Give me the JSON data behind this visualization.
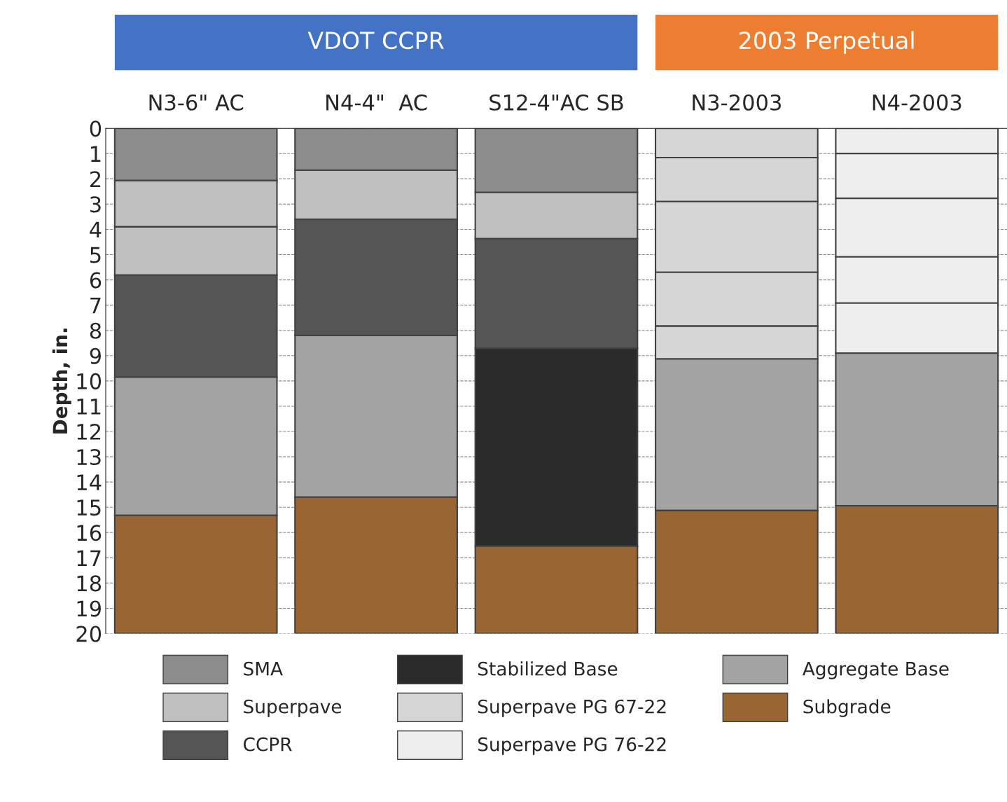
{
  "chart_data": {
    "type": "bar",
    "stacked": true,
    "ylabel": "Depth, in.",
    "annotations": [
      "VDOT CCPR",
      "2003 Perpetual"
    ],
    "categories": [
      "N3-6\" AC",
      "N4-4\"  AC",
      "S12-4\"AC SB",
      "N3-2003",
      "N4-2003"
    ],
    "ylim": [
      20,
      0
    ],
    "yticks": [
      0,
      1,
      2,
      3,
      4,
      5,
      6,
      7,
      8,
      9,
      10,
      11,
      12,
      13,
      14,
      15,
      16,
      17,
      18,
      19,
      20
    ],
    "grid": "y",
    "legend": "bottom",
    "series": [
      {
        "name": "SMA",
        "color": "#8c8c8c",
        "values": [
          2.07,
          1.66,
          2.54,
          null,
          null
        ]
      },
      {
        "name": "Superpave",
        "color": "#c0c0c0",
        "values": [
          1.83,
          1.94,
          1.83,
          null,
          null
        ]
      },
      {
        "color": "#c0c0c0",
        "values": [
          1.91,
          null,
          null,
          null,
          null
        ]
      },
      {
        "name": "CCPR",
        "color": "#555555",
        "values": [
          4.04,
          4.6,
          4.34,
          null,
          null
        ]
      },
      {
        "name": "Stabilized Base",
        "color": "#2b2b2b",
        "values": [
          null,
          null,
          7.83,
          null,
          null
        ]
      },
      {
        "name": "Superpave PG 67-22",
        "color": "#d6d6d6",
        "values": [
          null,
          null,
          null,
          1.16,
          null
        ]
      },
      {
        "color": "#d6d6d6",
        "values": [
          null,
          null,
          null,
          1.74,
          null
        ]
      },
      {
        "color": "#d6d6d6",
        "values": [
          null,
          null,
          null,
          2.8,
          null
        ]
      },
      {
        "color": "#d6d6d6",
        "values": [
          null,
          null,
          null,
          2.13,
          null
        ]
      },
      {
        "color": "#d6d6d6",
        "values": [
          null,
          null,
          null,
          1.3,
          null
        ]
      },
      {
        "name": "Superpave PG 76-22",
        "color": "#eeeeee",
        "values": [
          null,
          null,
          null,
          null,
          1.0
        ]
      },
      {
        "color": "#eeeeee",
        "values": [
          null,
          null,
          null,
          null,
          1.77
        ]
      },
      {
        "color": "#eeeeee",
        "values": [
          null,
          null,
          null,
          null,
          2.32
        ]
      },
      {
        "color": "#eeeeee",
        "values": [
          null,
          null,
          null,
          null,
          1.83
        ]
      },
      {
        "color": "#eeeeee",
        "values": [
          null,
          null,
          null,
          null,
          1.98
        ]
      },
      {
        "name": "Aggregate Base",
        "color": "#a3a3a3",
        "values": [
          5.47,
          6.4,
          null,
          6.0,
          6.04
        ]
      },
      {
        "name": "Subgrade",
        "color": "#996633",
        "values": [
          4.68,
          5.4,
          3.46,
          4.87,
          5.06
        ]
      }
    ]
  }
}
